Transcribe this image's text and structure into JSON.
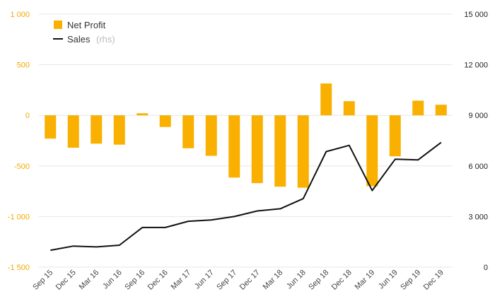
{
  "chart_data": {
    "type": "bar+line",
    "categories": [
      "Sep 15",
      "Dec 15",
      "Mar 16",
      "Jun 16",
      "Sep 16",
      "Dec 16",
      "Mar 17",
      "Jun 17",
      "Sep 17",
      "Dec 17",
      "Mar 18",
      "Jun 18",
      "Sep 18",
      "Dec 18",
      "Mar 19",
      "Jun 19",
      "Sep 19",
      "Dec 19"
    ],
    "series": [
      {
        "name": "Net Profit",
        "type": "bar",
        "axis": "left",
        "color": "#f9b000",
        "values": [
          -230,
          -320,
          -280,
          -290,
          20,
          -115,
          -325,
          -400,
          -615,
          -670,
          -705,
          -715,
          315,
          140,
          -700,
          -405,
          145,
          105
        ]
      },
      {
        "name": "Sales",
        "name_suffix": "(rhs)",
        "type": "line",
        "axis": "right",
        "color": "#111111",
        "values": [
          1000,
          1250,
          1200,
          1300,
          2350,
          2350,
          2720,
          2800,
          3000,
          3330,
          3460,
          4060,
          6850,
          7220,
          4540,
          6400,
          6360,
          7390
        ]
      }
    ],
    "left_axis": {
      "min": -1500,
      "max": 1000,
      "ticks": [
        1000,
        500,
        0,
        -500,
        -1000,
        -1500
      ],
      "tick_labels": [
        "1 000",
        "500",
        "0",
        "-500",
        "-1 000",
        "-1 500"
      ],
      "color": "#f5a800"
    },
    "right_axis": {
      "min": 0,
      "max": 15000,
      "ticks": [
        15000,
        12000,
        9000,
        6000,
        3000,
        0
      ],
      "tick_labels": [
        "15 000",
        "12 000",
        "9 000",
        "6 000",
        "3 000",
        "0"
      ]
    },
    "grid": true,
    "legend_placement": "top-left",
    "title": "",
    "xlabel": "",
    "ylabel": ""
  }
}
